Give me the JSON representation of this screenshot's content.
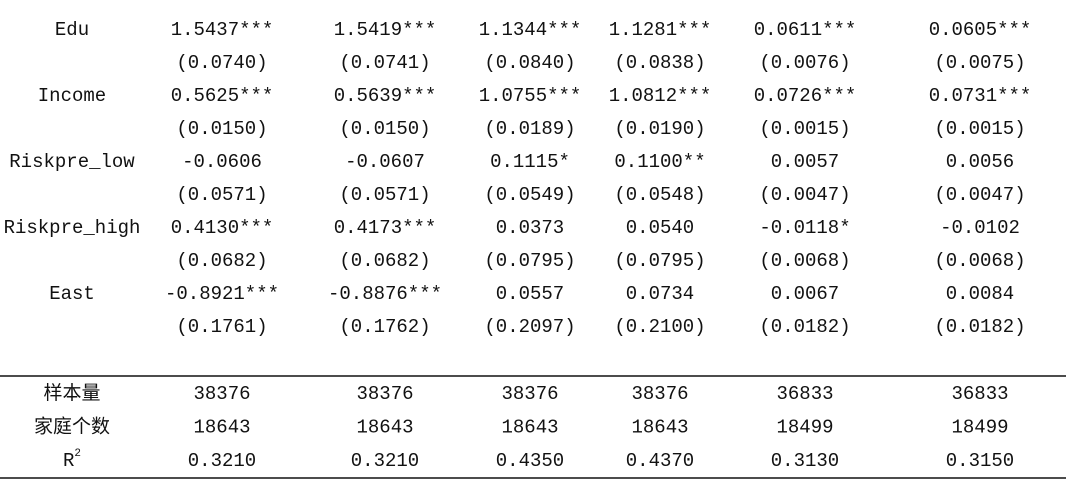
{
  "table": {
    "rows": [
      {
        "label": "Edu",
        "coef": [
          "1.5437***",
          "1.5419***",
          "1.1344***",
          "1.1281***",
          "0.0611***",
          "0.0605***"
        ],
        "se": [
          "(0.0740)",
          "(0.0741)",
          "(0.0840)",
          "(0.0838)",
          "(0.0076)",
          "(0.0075)"
        ]
      },
      {
        "label": "Income",
        "coef": [
          "0.5625***",
          "0.5639***",
          "1.0755***",
          "1.0812***",
          "0.0726***",
          "0.0731***"
        ],
        "se": [
          "(0.0150)",
          "(0.0150)",
          "(0.0189)",
          "(0.0190)",
          "(0.0015)",
          "(0.0015)"
        ]
      },
      {
        "label": "Riskpre_low",
        "coef": [
          "-0.0606",
          "-0.0607",
          "0.1115*",
          "0.1100**",
          "0.0057",
          "0.0056"
        ],
        "se": [
          "(0.0571)",
          "(0.0571)",
          "(0.0549)",
          "(0.0548)",
          "(0.0047)",
          "(0.0047)"
        ]
      },
      {
        "label": "Riskpre_high",
        "coef": [
          "0.4130***",
          "0.4173***",
          "0.0373",
          "0.0540",
          "-0.0118*",
          "-0.0102"
        ],
        "se": [
          "(0.0682)",
          "(0.0682)",
          "(0.0795)",
          "(0.0795)",
          "(0.0068)",
          "(0.0068)"
        ]
      },
      {
        "label": "East",
        "coef": [
          "-0.8921***",
          "-0.8876***",
          "0.0557",
          "0.0734",
          "0.0067",
          "0.0084"
        ],
        "se": [
          "(0.1761)",
          "(0.1762)",
          "(0.2097)",
          "(0.2100)",
          "(0.0182)",
          "(0.0182)"
        ]
      }
    ],
    "stats": [
      {
        "label": "样本量",
        "values": [
          "38376",
          "38376",
          "38376",
          "38376",
          "36833",
          "36833"
        ]
      },
      {
        "label": "家庭个数",
        "values": [
          "18643",
          "18643",
          "18643",
          "18643",
          "18499",
          "18499"
        ]
      },
      {
        "label": {
          "base": "R",
          "sup": "2"
        },
        "values": [
          "0.3210",
          "0.3210",
          "0.4350",
          "0.4370",
          "0.3130",
          "0.3150"
        ]
      }
    ]
  }
}
